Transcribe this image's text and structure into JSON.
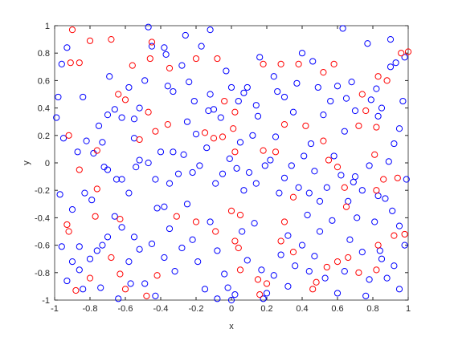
{
  "chart_data": {
    "type": "scatter",
    "x_label": "x",
    "y_label": "y",
    "xlim": [
      -1,
      1
    ],
    "ylim": [
      -1,
      1
    ],
    "xticks": [
      -1,
      -0.8,
      -0.6,
      -0.4,
      -0.2,
      0,
      0.2,
      0.4,
      0.6,
      0.8,
      1
    ],
    "yticks": [
      -1,
      -0.8,
      -0.6,
      -0.4,
      -0.2,
      0,
      0.2,
      0.4,
      0.6,
      0.8,
      1
    ],
    "grid": false,
    "marker": "circle-open",
    "series": [
      {
        "color": "#0000ff",
        "x": [
          -0.98,
          -0.96,
          -0.93,
          -0.99,
          -0.95,
          -0.87,
          -0.84,
          -0.82,
          -0.78,
          -0.73,
          -0.7,
          -0.69,
          -0.66,
          -0.62,
          -0.58,
          -0.55,
          -0.52,
          -0.49,
          -0.45,
          -0.47,
          -0.38,
          -0.36,
          -0.33,
          -0.37,
          -0.28,
          -0.26,
          -0.24,
          -0.21,
          -0.25,
          -0.2,
          -0.17,
          -0.12,
          -0.12,
          -0.1,
          -0.06,
          -0.03,
          0.0,
          0.04,
          0.07,
          0.09,
          0.14,
          0.15,
          0.12,
          0.16,
          0.24,
          0.26,
          0.3,
          0.35,
          0.37,
          0.4,
          0.46,
          0.49,
          0.52,
          0.56,
          0.6,
          0.63,
          0.65,
          0.68,
          0.7,
          0.77,
          0.79,
          0.82,
          0.85,
          0.9,
          0.93,
          0.95,
          0.97,
          0.98,
          0.92,
          0.89,
          -0.97,
          -0.9,
          -0.83,
          -0.79,
          -0.72,
          -0.7,
          -0.65,
          -0.62,
          -0.58,
          -0.54,
          -0.52,
          -0.47,
          -0.43,
          -0.4,
          -0.38,
          -0.35,
          -0.3,
          -0.27,
          -0.22,
          -0.18,
          -0.14,
          -0.09,
          -0.05,
          -0.01,
          0.03,
          0.07,
          0.1,
          0.14,
          0.19,
          0.22,
          0.27,
          0.3,
          0.34,
          0.38,
          0.41,
          0.44,
          0.47,
          0.5,
          0.54,
          0.58,
          0.62,
          0.66,
          0.7,
          0.74,
          0.78,
          0.83,
          0.87,
          0.91,
          0.95,
          0.99,
          -0.96,
          -0.9,
          -0.86,
          -0.84,
          -0.8,
          -0.76,
          -0.73,
          -0.7,
          -0.66,
          -0.62,
          -0.58,
          -0.55,
          -0.52,
          -0.49,
          -0.45,
          -0.42,
          -0.38,
          -0.35,
          -0.32,
          -0.28,
          -0.25,
          -0.22,
          -0.19,
          -0.15,
          -0.12,
          -0.08,
          -0.04,
          -0.02,
          0.02,
          0.06,
          0.09,
          0.13,
          0.17,
          0.2,
          0.24,
          0.28,
          0.32,
          0.36,
          0.4,
          0.43,
          0.47,
          0.5,
          0.53,
          0.57,
          0.6,
          0.64,
          0.67,
          0.71,
          0.74,
          0.78,
          0.81,
          0.85,
          0.88,
          0.92,
          0.95,
          0.98,
          0.84,
          0.76,
          0.18,
          0.0,
          -0.64,
          -0.74,
          -0.86,
          -0.93,
          -0.43,
          -0.57,
          -0.08,
          0.32,
          0.44,
          0.69,
          -0.75,
          -0.55,
          -0.33,
          -0.13,
          0.05,
          0.25,
          0.45,
          0.64,
          0.83,
          0.9
        ],
        "values": [
          0.48,
          0.72,
          0.84,
          0.33,
          0.18,
          0.08,
          0.48,
          0.16,
          0.07,
          0.15,
          0.35,
          0.63,
          0.39,
          0.33,
          0.55,
          0.32,
          0.4,
          0.6,
          0.85,
          0.99,
          0.84,
          0.56,
          0.52,
          0.79,
          0.71,
          0.93,
          0.59,
          0.45,
          0.3,
          0.21,
          0.85,
          0.97,
          0.5,
          0.39,
          0.33,
          0.67,
          0.55,
          0.45,
          0.51,
          0.55,
          0.42,
          0.34,
          0.2,
          0.77,
          0.63,
          0.52,
          0.48,
          0.37,
          0.58,
          0.8,
          0.74,
          0.55,
          0.35,
          0.45,
          0.56,
          0.98,
          0.47,
          0.59,
          0.38,
          0.87,
          0.46,
          0.54,
          0.4,
          0.7,
          0.73,
          0.25,
          0.45,
          0.77,
          0.14,
          0.01,
          -0.23,
          -0.34,
          -0.22,
          -0.27,
          -0.03,
          -0.05,
          -0.12,
          -0.12,
          -0.22,
          -0.03,
          0.02,
          0.0,
          -0.12,
          0.08,
          -0.32,
          -0.15,
          -0.08,
          0.06,
          -0.07,
          -0.02,
          0.11,
          -0.15,
          -0.08,
          0.03,
          -0.04,
          -0.2,
          -0.07,
          -0.15,
          -0.02,
          0.02,
          -0.22,
          -0.11,
          -0.02,
          -0.18,
          0.05,
          -0.22,
          -0.06,
          -0.28,
          -0.18,
          0.05,
          -0.09,
          -0.28,
          -0.1,
          -0.2,
          -0.02,
          -0.24,
          -0.26,
          -0.35,
          -0.46,
          -0.12,
          -0.61,
          -0.72,
          -0.61,
          -0.92,
          -0.7,
          -0.64,
          -0.6,
          -0.54,
          -0.39,
          -0.47,
          -0.72,
          -0.54,
          -0.63,
          -0.88,
          -0.59,
          -0.33,
          -0.69,
          -0.48,
          -0.79,
          -0.62,
          -0.3,
          -0.56,
          -0.72,
          -0.92,
          -0.43,
          -0.64,
          -0.81,
          -0.91,
          -0.96,
          -0.5,
          -0.71,
          -0.44,
          -0.78,
          -0.95,
          -0.82,
          -0.67,
          -0.53,
          -0.75,
          -0.6,
          -0.38,
          -0.68,
          -0.5,
          -0.84,
          -0.42,
          -0.95,
          -0.79,
          -0.56,
          -0.4,
          -0.65,
          -0.85,
          -0.43,
          -0.7,
          -0.84,
          -0.75,
          -0.92,
          -0.6,
          -0.64,
          -0.97,
          -0.99,
          -1.0,
          -0.99,
          -0.91,
          -0.78,
          -0.86,
          -0.97,
          -0.88,
          -0.99,
          -0.9,
          -0.79,
          -0.14,
          0.27,
          0.18,
          0.08,
          0.38,
          0.15,
          0.19,
          0.14,
          0.23,
          0.34,
          0.9
        ]
      },
      {
        "color": "#ff0000",
        "x": [
          -0.9,
          -0.91,
          -0.86,
          -0.8,
          -0.68,
          -0.46,
          -0.45,
          -0.56,
          -0.64,
          -0.6,
          -0.47,
          -0.35,
          -0.2,
          -0.08,
          -0.04,
          0.01,
          0.02,
          0.18,
          0.28,
          0.38,
          0.52,
          0.58,
          0.83,
          0.88,
          0.96,
          1.0,
          0.74,
          0.76,
          -0.92,
          -0.86,
          -0.92,
          -0.77,
          -0.76,
          -0.52,
          -0.43,
          -0.36,
          -0.15,
          -0.05,
          -0.1,
          0.02,
          0.18,
          0.25,
          0.3,
          0.52,
          0.42,
          0.6,
          0.55,
          0.82,
          0.81,
          0.86,
          0.94,
          0.72,
          -0.93,
          -0.76,
          -0.8,
          -0.88,
          -0.68,
          -0.63,
          -0.63,
          -0.6,
          -0.48,
          -0.42,
          -0.31,
          -0.2,
          0.0,
          0.05,
          -0.09,
          0.02,
          0.04,
          0.05,
          0.15,
          0.2,
          0.16,
          0.28,
          0.35,
          0.46,
          0.48,
          0.54,
          0.6,
          0.66,
          0.72,
          0.82,
          0.83,
          0.92,
          0.98,
          0.82,
          0.64,
          0.65,
          0.35,
          0.3
        ],
        "values": [
          0.97,
          0.73,
          0.73,
          0.89,
          0.9,
          0.76,
          0.88,
          0.71,
          0.5,
          0.46,
          0.37,
          0.69,
          0.76,
          0.76,
          0.45,
          0.25,
          0.37,
          0.72,
          0.72,
          0.72,
          0.66,
          0.72,
          0.63,
          0.6,
          0.8,
          0.81,
          0.5,
          0.38,
          0.2,
          -0.05,
          -0.5,
          -0.39,
          0.09,
          0.17,
          0.23,
          0.28,
          0.22,
          0.19,
          0.18,
          0.08,
          0.09,
          0.08,
          0.28,
          0.16,
          0.27,
          -0.03,
          0.02,
          0.26,
          0.06,
          -0.12,
          -0.11,
          0.27,
          -0.45,
          -0.19,
          -0.84,
          -0.93,
          -0.69,
          -0.41,
          -0.81,
          -0.92,
          -0.97,
          -0.82,
          -0.39,
          -0.43,
          -0.35,
          -0.38,
          -0.5,
          -0.57,
          -0.62,
          -0.78,
          -0.85,
          -0.88,
          -0.96,
          -0.57,
          -0.65,
          -0.92,
          -0.87,
          -0.76,
          -0.72,
          -0.69,
          -0.8,
          -0.78,
          -0.6,
          -0.53,
          -0.52,
          -0.2,
          -0.18,
          -0.32,
          -0.25,
          -0.43
        ]
      }
    ]
  }
}
